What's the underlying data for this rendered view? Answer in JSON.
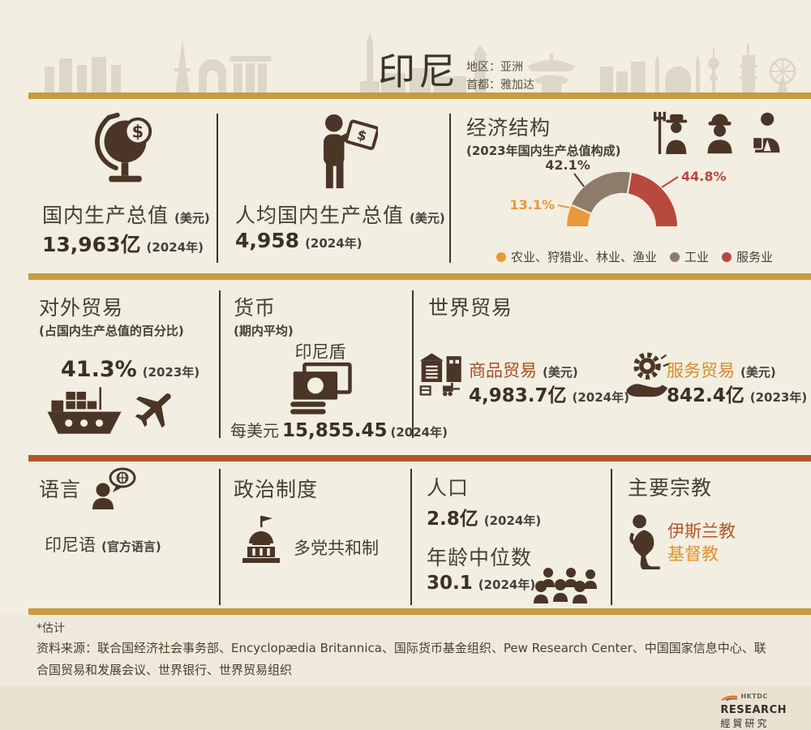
{
  "colors": {
    "background": "#f2eee1",
    "footer_background": "#eee9db",
    "footer_lower_background": "#e9e2d2",
    "ink": "#4a3526",
    "gold_bar": "#c89b40",
    "rust_bar": "#b2562e",
    "goods_accent": "#ab4d22",
    "services_accent": "#d18f2f"
  },
  "header": {
    "title": "印尼",
    "region": "地区：亚洲",
    "capital": "首都：雅加达"
  },
  "gdp": {
    "title": "国内生产总值",
    "unit": "(美元)",
    "value": "13,963亿",
    "year": "(2024年)"
  },
  "gdp_per_capita": {
    "title": "人均国内生产总值",
    "unit": "(美元)",
    "value": "4,958",
    "year": "(2024年)"
  },
  "economic_structure": {
    "title": "经济结构",
    "subtitle": "(2023年国内生产总值构成)"
  },
  "chart_data": {
    "type": "pie",
    "variant": "semicircle-donut",
    "title": "经济结构 (2023年国内生产总值构成)",
    "categories": [
      "农业、狩猎业、林业、渔业",
      "工业",
      "服务业"
    ],
    "values": [
      13.1,
      42.1,
      44.8
    ],
    "labels": [
      "13.1%",
      "42.1%",
      "44.8%"
    ],
    "colors": [
      "#e8993a",
      "#8d7c69",
      "#b7493f"
    ],
    "label_colors": [
      "#e8993a",
      "#4a4234",
      "#b7493f"
    ],
    "unit": "%",
    "legend_position": "bottom"
  },
  "foreign_trade": {
    "title": "对外贸易",
    "subtitle": "(占国内生产总值的百分比)",
    "value": "41.3%",
    "year": "(2023年)"
  },
  "currency": {
    "title": "货币",
    "subtitle": "(期内平均)",
    "name": "印尼盾",
    "rate_prefix": "每美元",
    "rate": "15,855.45",
    "year": "(2024年)"
  },
  "world_trade": {
    "title": "世界贸易",
    "goods": {
      "label": "商品贸易",
      "unit": "(美元)",
      "value": "4,983.7亿",
      "year": "(2024年)"
    },
    "services": {
      "label": "服务贸易",
      "unit": "(美元)",
      "value": "842.4亿",
      "year": "(2023年)"
    }
  },
  "language": {
    "title": "语言",
    "value": "印尼语",
    "note": "(官方语言)"
  },
  "political_system": {
    "title": "政治制度",
    "value": "多党共和制"
  },
  "population": {
    "title": "人口",
    "value": "2.8亿",
    "year": "(2024年)",
    "median_age_title": "年龄中位数",
    "median_age_value": "30.1",
    "median_age_year": "(2024年)"
  },
  "religion": {
    "title": "主要宗教",
    "items": [
      {
        "name": "伊斯兰教",
        "color": "#b2582c"
      },
      {
        "name": "基督教",
        "color": "#e2932f"
      }
    ]
  },
  "footnote": {
    "estimate": "*估计",
    "sources": "资料来源：联合国经济社会事务部、Encyclopædia Britannica、国际货币基金组织、Pew Research Center、中国国家信息中心、联合国贸易和发展会议、世界银行、世界贸易组织"
  },
  "logo": {
    "brand": "HKTDC",
    "line1": "RESEARCH",
    "line2": "經貿研究"
  }
}
